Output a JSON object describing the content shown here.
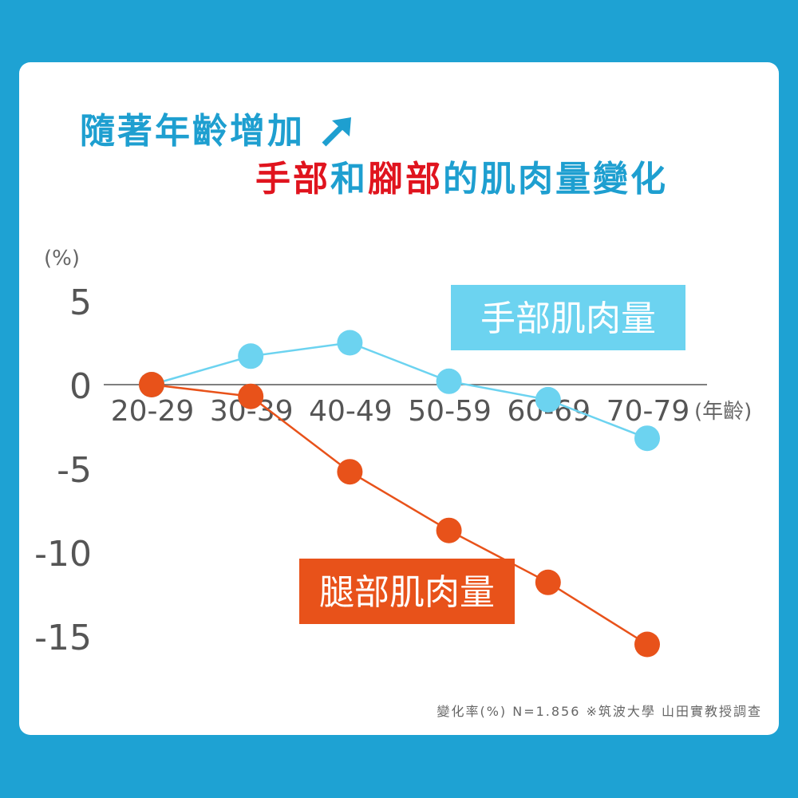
{
  "title": {
    "line1": "隨著年齡增加",
    "line2_parts": [
      {
        "text": "手部",
        "color": "#e0141e"
      },
      {
        "text": "和",
        "color": "#1e9fd0"
      },
      {
        "text": "腳部",
        "color": "#e0141e"
      },
      {
        "text": "的肌肉量變化",
        "color": "#1e9fd0"
      }
    ],
    "arrow_icon": "arrow-up-right-icon"
  },
  "footnote": "變化率(%)  N=1.856 ※筑波大學 山田實教授調查",
  "chart_data": {
    "type": "line",
    "ylabel": "(%)",
    "xlabel": "(年齡)",
    "categories": [
      "20-29",
      "30-39",
      "40-49",
      "50-59",
      "60-69",
      "70-79"
    ],
    "yticks": [
      5,
      0,
      -5,
      -10,
      -15
    ],
    "ytick_labels": [
      "5",
      "0",
      "-5",
      "-10",
      "-15"
    ],
    "ylim": [
      -17,
      6
    ],
    "grid": false,
    "series": [
      {
        "name": "手部肌肉量",
        "color": "#6cd3f0",
        "values": [
          0,
          1.7,
          2.5,
          0.2,
          -0.9,
          -3.2
        ]
      },
      {
        "name": "腿部肌肉量",
        "color": "#e8521a",
        "values": [
          0,
          -0.7,
          -5.2,
          -8.7,
          -11.8,
          -15.5
        ]
      }
    ]
  }
}
